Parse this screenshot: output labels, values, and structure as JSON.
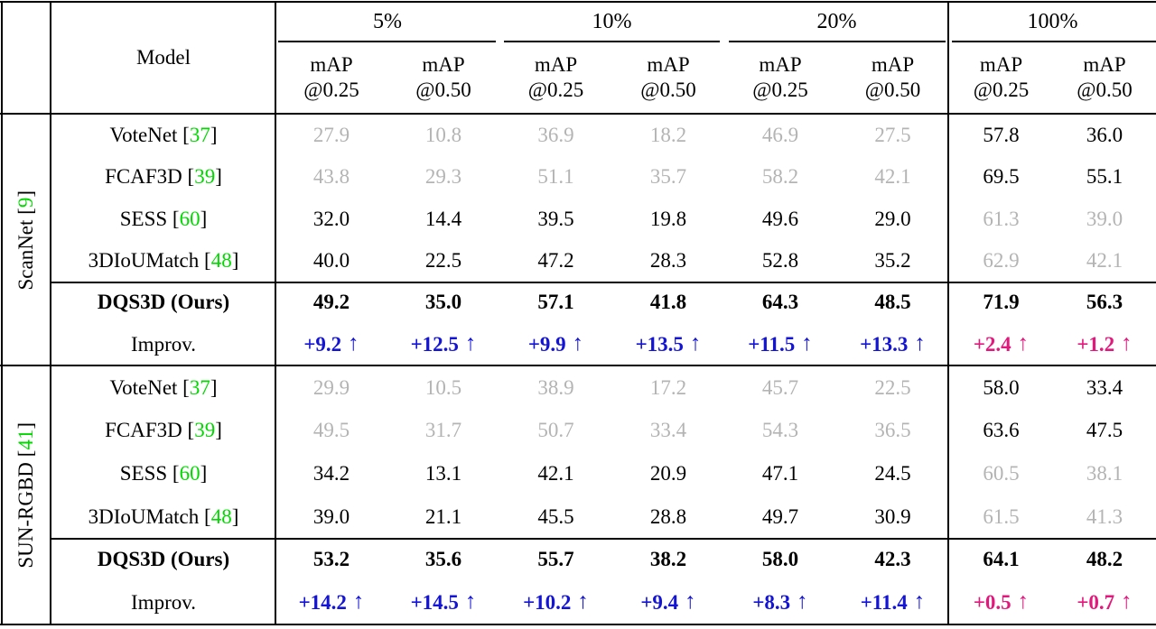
{
  "colors": {
    "accent_blue": "#1414d4",
    "accent_pink": "#e2197d",
    "citation_green": "#00d800",
    "muted_gray": "#b4b4b4",
    "rule_black": "#000000"
  },
  "table": {
    "model_header": "Model",
    "arrow": "↑",
    "bracket_open": "[",
    "bracket_close": "]",
    "groups": [
      "5%",
      "10%",
      "20%",
      "100%"
    ],
    "subheaders": [
      {
        "l1": "mAP",
        "l2": "@0.25"
      },
      {
        "l1": "mAP",
        "l2": "@0.50"
      },
      {
        "l1": "mAP",
        "l2": "@0.25"
      },
      {
        "l1": "mAP",
        "l2": "@0.50"
      },
      {
        "l1": "mAP",
        "l2": "@0.25"
      },
      {
        "l1": "mAP",
        "l2": "@0.50"
      },
      {
        "l1": "mAP",
        "l2": "@0.25"
      },
      {
        "l1": "mAP",
        "l2": "@0.50"
      }
    ],
    "sections": [
      {
        "dataset": "ScanNet",
        "cite": "9",
        "rows": [
          {
            "model": "VoteNet",
            "cite": "37",
            "type": "gray6",
            "values": [
              "27.9",
              "10.8",
              "36.9",
              "18.2",
              "46.9",
              "27.5",
              "57.8",
              "36.0"
            ]
          },
          {
            "model": "FCAF3D",
            "cite": "39",
            "type": "gray6",
            "values": [
              "43.8",
              "29.3",
              "51.1",
              "35.7",
              "58.2",
              "42.1",
              "69.5",
              "55.1"
            ]
          },
          {
            "model": "SESS",
            "cite": "60",
            "type": "gray2",
            "values": [
              "32.0",
              "14.4",
              "39.5",
              "19.8",
              "49.6",
              "29.0",
              "61.3",
              "39.0"
            ]
          },
          {
            "model": "3DIoUMatch",
            "cite": "48",
            "type": "gray2",
            "values": [
              "40.0",
              "22.5",
              "47.2",
              "28.3",
              "52.8",
              "35.2",
              "62.9",
              "42.1"
            ]
          },
          {
            "model": "DQS3D (Ours)",
            "cite": null,
            "type": "ours",
            "values": [
              "49.2",
              "35.0",
              "57.1",
              "41.8",
              "64.3",
              "48.5",
              "71.9",
              "56.3"
            ]
          },
          {
            "model": "Improv.",
            "cite": null,
            "type": "improv",
            "values": [
              "+9.2",
              "+12.5",
              "+9.9",
              "+13.5",
              "+11.5",
              "+13.3",
              "+2.4",
              "+1.2"
            ]
          }
        ]
      },
      {
        "dataset": "SUN-RGBD",
        "cite": "41",
        "rows": [
          {
            "model": "VoteNet",
            "cite": "37",
            "type": "gray6",
            "values": [
              "29.9",
              "10.5",
              "38.9",
              "17.2",
              "45.7",
              "22.5",
              "58.0",
              "33.4"
            ]
          },
          {
            "model": "FCAF3D",
            "cite": "39",
            "type": "gray6",
            "values": [
              "49.5",
              "31.7",
              "50.7",
              "33.4",
              "54.3",
              "36.5",
              "63.6",
              "47.5"
            ]
          },
          {
            "model": "SESS",
            "cite": "60",
            "type": "gray2",
            "values": [
              "34.2",
              "13.1",
              "42.1",
              "20.9",
              "47.1",
              "24.5",
              "60.5",
              "38.1"
            ]
          },
          {
            "model": "3DIoUMatch",
            "cite": "48",
            "type": "gray2",
            "values": [
              "39.0",
              "21.1",
              "45.5",
              "28.8",
              "49.7",
              "30.9",
              "61.5",
              "41.3"
            ]
          },
          {
            "model": "DQS3D (Ours)",
            "cite": null,
            "type": "ours",
            "values": [
              "53.2",
              "35.6",
              "55.7",
              "38.2",
              "58.0",
              "42.3",
              "64.1",
              "48.2"
            ]
          },
          {
            "model": "Improv.",
            "cite": null,
            "type": "improv",
            "values": [
              "+14.2",
              "+14.5",
              "+10.2",
              "+9.4",
              "+8.3",
              "+11.4",
              "+0.5",
              "+0.7"
            ]
          }
        ]
      }
    ]
  }
}
